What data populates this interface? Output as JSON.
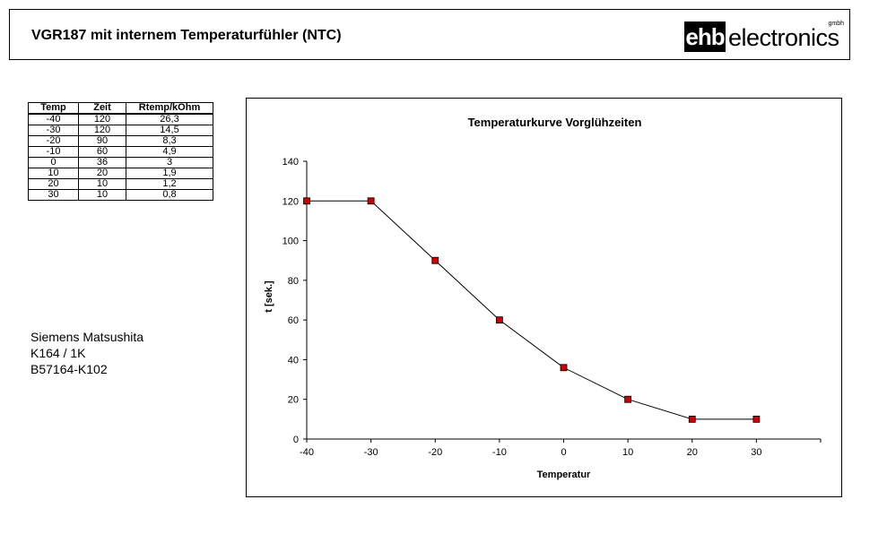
{
  "header": {
    "title": "VGR187 mit internem Temperaturfühler (NTC)",
    "logo": {
      "box_text": "ehb",
      "word": "electronics",
      "suffix": "gmbh"
    }
  },
  "table": {
    "headers": [
      "Temp",
      "Zeit",
      "Rtemp/kOhm"
    ],
    "rows": [
      [
        "-40",
        "120",
        "26,3"
      ],
      [
        "-30",
        "120",
        "14,5"
      ],
      [
        "-20",
        "90",
        "8,3"
      ],
      [
        "-10",
        "60",
        "4,9"
      ],
      [
        "0",
        "36",
        "3"
      ],
      [
        "10",
        "20",
        "1,9"
      ],
      [
        "20",
        "10",
        "1,2"
      ],
      [
        "30",
        "10",
        "0,8"
      ]
    ]
  },
  "info": {
    "lines": [
      "Siemens Matsushita",
      "K164 / 1K",
      "B57164-K102"
    ]
  },
  "chart_data": {
    "type": "line",
    "title": "Temperaturkurve Vorglühzeiten",
    "xlabel": "Temperatur",
    "ylabel": "t [sek.]",
    "x": [
      -40,
      -30,
      -20,
      -10,
      0,
      10,
      20,
      30
    ],
    "series": [
      {
        "values": [
          120,
          120,
          90,
          60,
          36,
          20,
          10,
          10
        ]
      }
    ],
    "xlim": [
      -40,
      40
    ],
    "ylim": [
      0,
      140
    ],
    "xticks": [
      -40,
      -30,
      -20,
      -10,
      0,
      10,
      20,
      30
    ],
    "yticks": [
      0,
      20,
      40,
      60,
      80,
      100,
      120,
      140
    ],
    "grid": false,
    "legend": "none",
    "colors": {
      "line": "#000000",
      "marker_fill": "#cc0000",
      "marker_stroke": "#000000"
    }
  }
}
